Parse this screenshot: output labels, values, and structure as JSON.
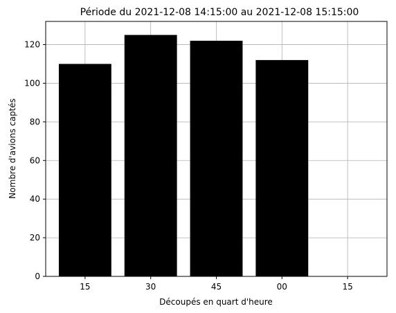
{
  "chart_data": {
    "type": "bar",
    "title": "Période du 2021-12-08 14:15:00 au 2021-12-08 15:15:00",
    "xlabel": "Découpés en quart d'heure",
    "ylabel": "Nombre d'avions captés",
    "categories": [
      "15",
      "30",
      "45",
      "00",
      "15"
    ],
    "values": [
      110,
      125,
      122,
      112,
      0
    ],
    "ylim": [
      0,
      132
    ],
    "yticks": [
      0,
      20,
      40,
      60,
      80,
      100,
      120
    ],
    "grid": true,
    "bar_color": "#000000"
  }
}
